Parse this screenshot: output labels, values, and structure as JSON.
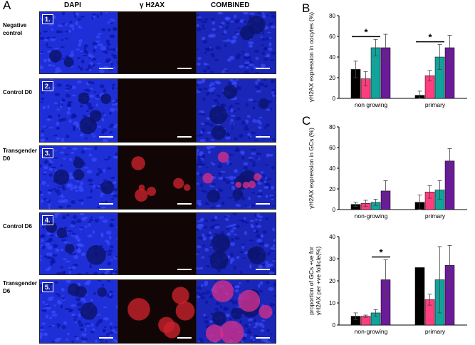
{
  "panel_labels": {
    "a": "A",
    "b": "B",
    "c": "C"
  },
  "column_headers": [
    "DAPI",
    "γ H2AX",
    "COMBINED"
  ],
  "rows": [
    {
      "label": "Negative\ncontrol",
      "num": "1."
    },
    {
      "label": "Control D0",
      "num": "2."
    },
    {
      "label": "Transgender\nD0",
      "num": "3."
    },
    {
      "label": "Control D6",
      "num": "4."
    },
    {
      "label": "Transgender\nD6",
      "num": "5."
    }
  ],
  "colors": {
    "black": "#000000",
    "pink": "#ff3d7f",
    "teal": "#12a39a",
    "purple": "#6a1b9a"
  },
  "chart_data": [
    {
      "id": "B",
      "type": "bar",
      "ylabel": "γH2AX expression in oocytes (%)",
      "ylim": [
        0,
        80
      ],
      "yticks": [
        0,
        20,
        40,
        60,
        80
      ],
      "categories": [
        "non growing",
        "primary"
      ],
      "series": [
        {
          "values": [
            28,
            3
          ],
          "errors": [
            8,
            4
          ]
        },
        {
          "values": [
            19,
            22
          ],
          "errors": [
            7,
            5
          ]
        },
        {
          "values": [
            49,
            40
          ],
          "errors": [
            8,
            12
          ]
        },
        {
          "values": [
            49,
            49
          ],
          "errors": [
            13,
            12
          ]
        }
      ],
      "significance": [
        {
          "category": 0,
          "from": 0,
          "to": 2,
          "label": "*"
        },
        {
          "category": 1,
          "from": 0,
          "to": 2,
          "label": "*"
        }
      ]
    },
    {
      "id": "C1",
      "type": "bar",
      "ylabel": "γH2AX expression in GCs (%)",
      "ylim": [
        0,
        80
      ],
      "yticks": [
        0,
        20,
        40,
        60,
        80
      ],
      "categories": [
        "non-growing",
        "primary"
      ],
      "series": [
        {
          "values": [
            5,
            7
          ],
          "errors": [
            2,
            7
          ]
        },
        {
          "values": [
            6,
            17
          ],
          "errors": [
            3,
            6
          ]
        },
        {
          "values": [
            7,
            19
          ],
          "errors": [
            3,
            9
          ]
        },
        {
          "values": [
            18,
            47
          ],
          "errors": [
            10,
            12
          ]
        }
      ],
      "significance": []
    },
    {
      "id": "C2",
      "type": "bar",
      "ylabel": "proportion of GCs +ve for γH2AX per +ve follicle(%)",
      "ylim": [
        0,
        40
      ],
      "yticks": [
        0,
        10,
        20,
        30,
        40
      ],
      "categories": [
        "non-growing",
        "primary"
      ],
      "series": [
        {
          "values": [
            4,
            26
          ],
          "errors": [
            1.5,
            0
          ]
        },
        {
          "values": [
            4,
            11.5
          ],
          "errors": [
            0.5,
            2.5
          ]
        },
        {
          "values": [
            5.5,
            20.5
          ],
          "errors": [
            1.5,
            15
          ]
        },
        {
          "values": [
            20.5,
            27
          ],
          "errors": [
            9,
            9
          ]
        }
      ],
      "significance": [
        {
          "category": 0,
          "from": 2,
          "to": 3,
          "label": "*"
        }
      ]
    }
  ]
}
